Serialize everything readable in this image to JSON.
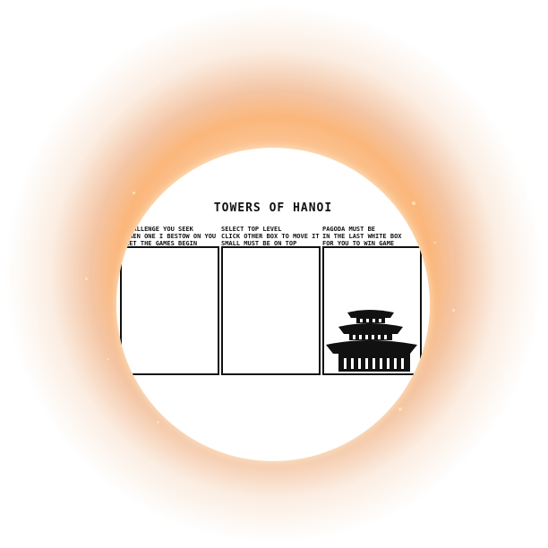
{
  "title": "TOWERS OF HANOI",
  "instructions": [
    {
      "lines": [
        "CHALLENGE YOU SEEK",
        "THEN ONE I BESTOW ON YOU",
        "LET THE GAMES BEGIN"
      ]
    },
    {
      "lines": [
        "SELECT TOP LEVEL",
        "CLICK OTHER BOX TO MOVE IT",
        "SMALL MUST BE ON TOP"
      ]
    },
    {
      "lines": [
        "PAGODA MUST BE",
        "IN THE LAST WHITE BOX",
        "FOR YOU TO WIN GAME"
      ]
    }
  ],
  "boxes": [
    {
      "name": "tower-box-1",
      "has_pagoda": false
    },
    {
      "name": "tower-box-2",
      "has_pagoda": false
    },
    {
      "name": "tower-box-3",
      "has_pagoda": true
    }
  ],
  "colors": {
    "glow": "#f5a660",
    "ink": "#111111",
    "background": "#ffffff"
  },
  "icons": {
    "pagoda": "pagoda-icon"
  }
}
